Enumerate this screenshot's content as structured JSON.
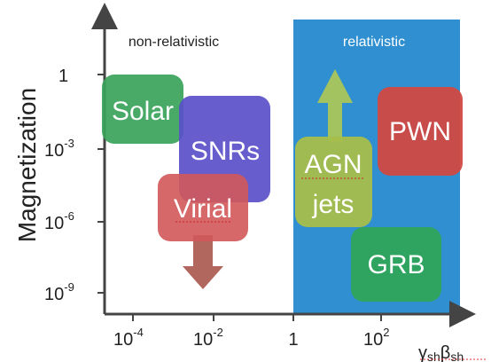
{
  "regions": {
    "left_label": "non-relativistic",
    "right_label": "relativistic",
    "right_color": "#2f8fd0"
  },
  "axes": {
    "y_title": "Magnetization",
    "x_title_gamma": "γ",
    "x_title_gamma_sub": "sh",
    "x_title_beta": "β",
    "x_title_beta_sub": "sh",
    "x_ticks": [
      {
        "base": "10",
        "exp": "-4"
      },
      {
        "base": "10",
        "exp": "-2"
      },
      {
        "base": "1",
        "exp": ""
      },
      {
        "base": "10",
        "exp": "2"
      }
    ],
    "y_ticks": [
      {
        "base": "1",
        "exp": ""
      },
      {
        "base": "10",
        "exp": "-3"
      },
      {
        "base": "10",
        "exp": "-6"
      },
      {
        "base": "10",
        "exp": "-9"
      }
    ]
  },
  "sources": [
    {
      "label": "Solar",
      "color": "#3aa35a"
    },
    {
      "label": "SNRs",
      "color": "#5a4fc8"
    },
    {
      "label": "Virial",
      "color": "#d2585a"
    },
    {
      "label": "AGN",
      "label2": "jets",
      "color": "#a7be4a"
    },
    {
      "label": "PWN",
      "color": "#d14a42"
    },
    {
      "label": "GRB",
      "color": "#2fa55a"
    }
  ],
  "arrow_colors": {
    "virial_down": "#a8554c",
    "agn_up": "#a9c65a"
  }
}
